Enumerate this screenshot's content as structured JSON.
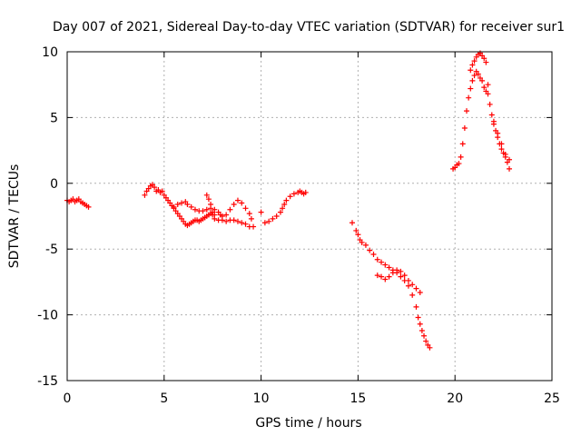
{
  "chart_data": {
    "type": "scatter",
    "title": "Day 007 of 2021, Sidereal Day-to-day VTEC variation (SDTVAR) for receiver sur1",
    "xlabel": "GPS time / hours",
    "ylabel": "SDTVAR / TECUs",
    "xlim": [
      0,
      25
    ],
    "ylim": [
      -15,
      10
    ],
    "xticks": [
      0,
      5,
      10,
      15,
      20,
      25
    ],
    "yticks": [
      -15,
      -10,
      -5,
      0,
      5,
      10
    ],
    "grid": true,
    "marker": "plus",
    "color": "#ff0000",
    "series": [
      {
        "name": "SDTVAR",
        "points": [
          [
            0.0,
            -1.3
          ],
          [
            0.1,
            -1.4
          ],
          [
            0.2,
            -1.3
          ],
          [
            0.3,
            -1.2
          ],
          [
            0.4,
            -1.4
          ],
          [
            0.5,
            -1.3
          ],
          [
            0.6,
            -1.2
          ],
          [
            0.7,
            -1.4
          ],
          [
            0.8,
            -1.5
          ],
          [
            0.9,
            -1.6
          ],
          [
            1.0,
            -1.7
          ],
          [
            1.1,
            -1.8
          ],
          [
            4.0,
            -0.9
          ],
          [
            4.1,
            -0.6
          ],
          [
            4.2,
            -0.4
          ],
          [
            4.3,
            -0.2
          ],
          [
            4.4,
            -0.1
          ],
          [
            4.5,
            -0.3
          ],
          [
            4.6,
            -0.6
          ],
          [
            4.7,
            -0.5
          ],
          [
            4.8,
            -0.7
          ],
          [
            4.9,
            -0.6
          ],
          [
            5.0,
            -0.9
          ],
          [
            5.1,
            -1.1
          ],
          [
            5.2,
            -1.3
          ],
          [
            5.3,
            -1.5
          ],
          [
            5.4,
            -1.7
          ],
          [
            5.5,
            -1.9
          ],
          [
            5.6,
            -2.1
          ],
          [
            5.7,
            -2.3
          ],
          [
            5.8,
            -2.5
          ],
          [
            5.9,
            -2.7
          ],
          [
            6.0,
            -2.9
          ],
          [
            6.1,
            -3.1
          ],
          [
            6.2,
            -3.2
          ],
          [
            6.3,
            -3.1
          ],
          [
            6.4,
            -3.0
          ],
          [
            6.5,
            -2.9
          ],
          [
            6.6,
            -2.8
          ],
          [
            6.7,
            -2.8
          ],
          [
            6.8,
            -2.9
          ],
          [
            6.9,
            -2.8
          ],
          [
            7.0,
            -2.7
          ],
          [
            7.1,
            -2.6
          ],
          [
            7.2,
            -2.5
          ],
          [
            7.3,
            -2.4
          ],
          [
            7.4,
            -2.3
          ],
          [
            7.5,
            -2.4
          ],
          [
            7.6,
            -2.7
          ],
          [
            7.8,
            -2.8
          ],
          [
            8.0,
            -2.8
          ],
          [
            8.2,
            -2.9
          ],
          [
            8.4,
            -2.8
          ],
          [
            8.6,
            -2.8
          ],
          [
            8.8,
            -2.9
          ],
          [
            9.0,
            -3.0
          ],
          [
            9.2,
            -3.1
          ],
          [
            9.4,
            -3.3
          ],
          [
            9.6,
            -3.3
          ],
          [
            5.5,
            -1.8
          ],
          [
            5.7,
            -1.6
          ],
          [
            5.9,
            -1.5
          ],
          [
            6.1,
            -1.4
          ],
          [
            6.2,
            -1.6
          ],
          [
            6.4,
            -1.8
          ],
          [
            6.6,
            -2.0
          ],
          [
            6.8,
            -2.1
          ],
          [
            7.0,
            -2.1
          ],
          [
            7.2,
            -2.0
          ],
          [
            7.4,
            -1.9
          ],
          [
            7.6,
            -2.0
          ],
          [
            7.8,
            -2.2
          ],
          [
            7.9,
            -2.4
          ],
          [
            8.0,
            -2.5
          ],
          [
            8.2,
            -2.4
          ],
          [
            8.4,
            -2.0
          ],
          [
            8.6,
            -1.6
          ],
          [
            8.8,
            -1.3
          ],
          [
            9.0,
            -1.5
          ],
          [
            9.2,
            -1.9
          ],
          [
            9.4,
            -2.3
          ],
          [
            9.5,
            -2.7
          ],
          [
            7.2,
            -0.9
          ],
          [
            7.3,
            -1.2
          ],
          [
            7.4,
            -1.6
          ],
          [
            7.5,
            -2.2
          ],
          [
            7.6,
            -2.4
          ],
          [
            10.0,
            -2.2
          ],
          [
            10.2,
            -3.0
          ],
          [
            10.4,
            -2.9
          ],
          [
            10.6,
            -2.7
          ],
          [
            10.8,
            -2.5
          ],
          [
            11.0,
            -2.2
          ],
          [
            11.1,
            -1.9
          ],
          [
            11.2,
            -1.6
          ],
          [
            11.3,
            -1.3
          ],
          [
            11.5,
            -1.0
          ],
          [
            11.7,
            -0.8
          ],
          [
            11.9,
            -0.7
          ],
          [
            12.0,
            -0.6
          ],
          [
            12.1,
            -0.7
          ],
          [
            12.2,
            -0.8
          ],
          [
            12.3,
            -0.7
          ],
          [
            14.7,
            -3.0
          ],
          [
            14.9,
            -3.6
          ],
          [
            15.0,
            -3.9
          ],
          [
            15.1,
            -4.3
          ],
          [
            15.2,
            -4.5
          ],
          [
            15.4,
            -4.7
          ],
          [
            15.6,
            -5.1
          ],
          [
            15.8,
            -5.4
          ],
          [
            16.0,
            -5.8
          ],
          [
            16.2,
            -6.0
          ],
          [
            16.4,
            -6.2
          ],
          [
            16.6,
            -6.4
          ],
          [
            16.8,
            -6.6
          ],
          [
            17.0,
            -6.8
          ],
          [
            17.2,
            -7.1
          ],
          [
            17.4,
            -7.4
          ],
          [
            17.6,
            -7.8
          ],
          [
            17.8,
            -8.5
          ],
          [
            18.0,
            -9.4
          ],
          [
            18.1,
            -10.2
          ],
          [
            18.2,
            -10.7
          ],
          [
            18.3,
            -11.2
          ],
          [
            18.4,
            -11.6
          ],
          [
            18.5,
            -12.0
          ],
          [
            18.6,
            -12.3
          ],
          [
            18.7,
            -12.5
          ],
          [
            16.0,
            -7.0
          ],
          [
            16.2,
            -7.1
          ],
          [
            16.4,
            -7.3
          ],
          [
            16.6,
            -7.1
          ],
          [
            16.8,
            -6.8
          ],
          [
            17.0,
            -6.6
          ],
          [
            17.2,
            -6.7
          ],
          [
            17.4,
            -7.0
          ],
          [
            17.6,
            -7.4
          ],
          [
            17.8,
            -7.7
          ],
          [
            18.0,
            -8.0
          ],
          [
            18.2,
            -8.3
          ],
          [
            19.9,
            1.1
          ],
          [
            20.0,
            1.2
          ],
          [
            20.1,
            1.4
          ],
          [
            20.2,
            1.5
          ],
          [
            20.3,
            2.0
          ],
          [
            20.4,
            3.0
          ],
          [
            20.5,
            4.2
          ],
          [
            20.6,
            5.5
          ],
          [
            20.7,
            6.5
          ],
          [
            20.8,
            7.2
          ],
          [
            20.9,
            7.8
          ],
          [
            21.0,
            8.2
          ],
          [
            21.1,
            8.5
          ],
          [
            21.2,
            8.3
          ],
          [
            21.3,
            8.0
          ],
          [
            21.4,
            7.8
          ],
          [
            21.5,
            7.3
          ],
          [
            21.6,
            7.0
          ],
          [
            21.7,
            6.8
          ],
          [
            20.8,
            8.6
          ],
          [
            20.9,
            9.0
          ],
          [
            21.0,
            9.3
          ],
          [
            21.1,
            9.6
          ],
          [
            21.2,
            9.8
          ],
          [
            21.3,
            9.9
          ],
          [
            21.4,
            9.7
          ],
          [
            21.5,
            9.5
          ],
          [
            21.6,
            9.2
          ],
          [
            21.7,
            7.5
          ],
          [
            21.8,
            6.0
          ],
          [
            21.9,
            5.2
          ],
          [
            22.0,
            4.7
          ],
          [
            22.1,
            4.0
          ],
          [
            22.2,
            3.5
          ],
          [
            22.3,
            3.0
          ],
          [
            22.4,
            2.6
          ],
          [
            22.5,
            2.3
          ],
          [
            22.6,
            2.0
          ],
          [
            22.7,
            1.6
          ],
          [
            22.8,
            1.1
          ],
          [
            22.0,
            4.5
          ],
          [
            22.2,
            3.8
          ],
          [
            22.4,
            3.0
          ],
          [
            22.6,
            2.2
          ],
          [
            22.8,
            1.8
          ]
        ]
      }
    ]
  }
}
